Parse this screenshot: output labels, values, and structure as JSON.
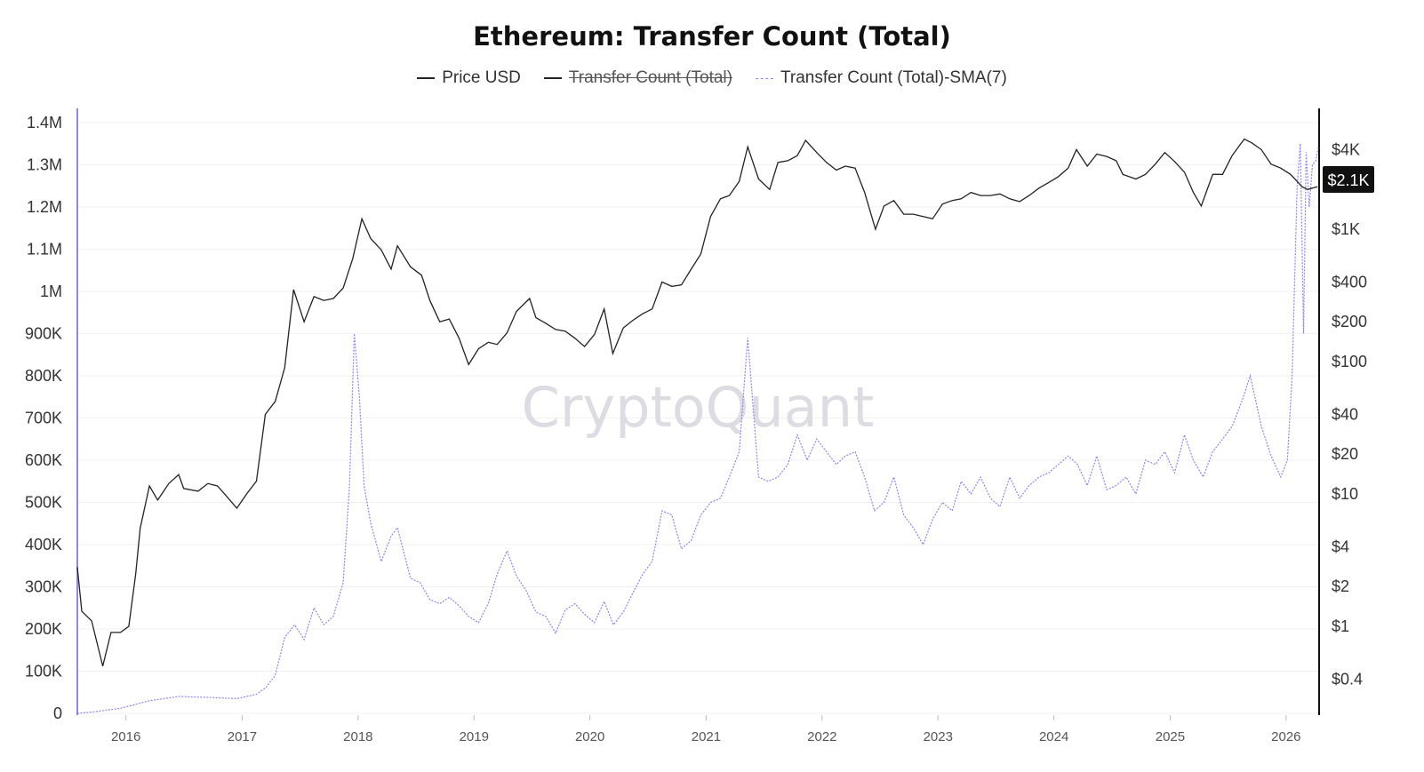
{
  "title": "Ethereum: Transfer Count (Total)",
  "legend": [
    {
      "label": "Price USD",
      "style": "solid",
      "color": "#222222",
      "hidden": false
    },
    {
      "label": "Transfer Count (Total)",
      "style": "solid",
      "color": "#222222",
      "hidden": true
    },
    {
      "label": "Transfer Count (Total)-SMA(7)",
      "style": "dotted",
      "color": "#8f86e8",
      "hidden": false
    }
  ],
  "watermark": "CryptoQuant",
  "current_price_label": "$2.1K",
  "chart_data": {
    "type": "line",
    "x_axis": {
      "type": "date",
      "ticks": [
        "2016",
        "2017",
        "2018",
        "2019",
        "2020",
        "2021",
        "2022",
        "2023",
        "2024",
        "2025",
        "2026"
      ],
      "range": [
        "2015-08-01",
        "2026-04-15"
      ]
    },
    "y_left": {
      "label": "",
      "ticks": [
        "0",
        "100K",
        "200K",
        "300K",
        "400K",
        "500K",
        "600K",
        "700K",
        "800K",
        "900K",
        "1M",
        "1.1M",
        "1.2M",
        "1.3M",
        "1.4M"
      ],
      "tick_values": [
        0,
        100000,
        200000,
        300000,
        400000,
        500000,
        600000,
        700000,
        800000,
        900000,
        1000000,
        1100000,
        1200000,
        1300000,
        1400000
      ],
      "range": [
        0,
        1400000
      ],
      "series": "Transfer Count (Total)-SMA(7)"
    },
    "y_right": {
      "label": "",
      "scale": "log",
      "ticks": [
        "$4K",
        "$1K",
        "$400",
        "$200",
        "$100",
        "$40",
        "$20",
        "$10",
        "$4",
        "$2",
        "$1",
        "$0.4"
      ],
      "tick_values": [
        4000,
        1000,
        400,
        200,
        100,
        40,
        20,
        10,
        4,
        2,
        1,
        0.4
      ],
      "range": [
        0.22,
        6400
      ],
      "series": "Price USD"
    },
    "grid": true,
    "series": [
      {
        "name": "Price USD",
        "axis": "right",
        "color": "#222222",
        "x": [
          "2015-08-01",
          "2015-08-15",
          "2015-09-15",
          "2015-10-20",
          "2015-11-15",
          "2015-12-15",
          "2016-01-10",
          "2016-02-01",
          "2016-02-15",
          "2016-03-15",
          "2016-04-10",
          "2016-05-15",
          "2016-06-15",
          "2016-07-01",
          "2016-08-15",
          "2016-09-15",
          "2016-10-15",
          "2016-11-15",
          "2016-12-15",
          "2017-01-15",
          "2017-02-15",
          "2017-03-15",
          "2017-04-15",
          "2017-05-15",
          "2017-06-12",
          "2017-07-15",
          "2017-08-15",
          "2017-09-15",
          "2017-10-15",
          "2017-11-15",
          "2017-12-15",
          "2018-01-13",
          "2018-02-10",
          "2018-03-15",
          "2018-04-15",
          "2018-05-05",
          "2018-06-15",
          "2018-07-20",
          "2018-08-15",
          "2018-09-15",
          "2018-10-15",
          "2018-11-15",
          "2018-12-15",
          "2019-01-15",
          "2019-02-15",
          "2019-03-15",
          "2019-04-15",
          "2019-05-15",
          "2019-06-25",
          "2019-07-15",
          "2019-08-15",
          "2019-09-15",
          "2019-10-15",
          "2019-11-15",
          "2019-12-15",
          "2020-01-15",
          "2020-02-15",
          "2020-03-13",
          "2020-04-15",
          "2020-05-15",
          "2020-06-15",
          "2020-07-15",
          "2020-08-15",
          "2020-09-15",
          "2020-10-15",
          "2020-11-15",
          "2020-12-15",
          "2021-01-15",
          "2021-02-15",
          "2021-03-15",
          "2021-04-15",
          "2021-05-12",
          "2021-06-15",
          "2021-07-20",
          "2021-08-15",
          "2021-09-15",
          "2021-10-15",
          "2021-11-10",
          "2021-12-15",
          "2022-01-15",
          "2022-02-15",
          "2022-03-15",
          "2022-04-15",
          "2022-05-15",
          "2022-06-18",
          "2022-07-15",
          "2022-08-15",
          "2022-09-15",
          "2022-10-15",
          "2022-11-15",
          "2022-12-15",
          "2023-01-15",
          "2023-02-15",
          "2023-03-15",
          "2023-04-15",
          "2023-05-15",
          "2023-06-15",
          "2023-07-15",
          "2023-08-15",
          "2023-09-15",
          "2023-10-15",
          "2023-11-15",
          "2023-12-15",
          "2024-01-15",
          "2024-02-15",
          "2024-03-12",
          "2024-04-15",
          "2024-05-15",
          "2024-06-15",
          "2024-07-15",
          "2024-08-05",
          "2024-09-15",
          "2024-10-15",
          "2024-11-15",
          "2024-12-15",
          "2025-01-15",
          "2025-02-15",
          "2025-03-15",
          "2025-04-09",
          "2025-05-15",
          "2025-06-15",
          "2025-07-15",
          "2025-08-22",
          "2025-09-15",
          "2025-10-15",
          "2025-11-15",
          "2025-12-15",
          "2026-01-15",
          "2026-02-05",
          "2026-02-20",
          "2026-03-10",
          "2026-03-25",
          "2026-04-10"
        ],
        "y": [
          2.8,
          1.3,
          1.1,
          0.5,
          0.9,
          0.9,
          1.0,
          2.5,
          5.5,
          11.5,
          9,
          12,
          14,
          11,
          10.5,
          12,
          11.5,
          9.5,
          7.8,
          10,
          12.5,
          40,
          50,
          90,
          350,
          200,
          310,
          290,
          300,
          360,
          600,
          1200,
          850,
          700,
          500,
          750,
          520,
          450,
          290,
          200,
          210,
          150,
          95,
          125,
          140,
          135,
          165,
          240,
          300,
          215,
          195,
          175,
          170,
          150,
          130,
          160,
          250,
          115,
          180,
          205,
          230,
          250,
          400,
          370,
          380,
          500,
          650,
          1250,
          1700,
          1800,
          2300,
          4200,
          2400,
          2000,
          3200,
          3300,
          3600,
          4700,
          3800,
          3200,
          2800,
          3000,
          2900,
          1900,
          1000,
          1500,
          1650,
          1300,
          1300,
          1250,
          1200,
          1550,
          1650,
          1700,
          1900,
          1800,
          1800,
          1850,
          1700,
          1620,
          1800,
          2050,
          2250,
          2500,
          2900,
          4000,
          3000,
          3700,
          3550,
          3300,
          2600,
          2400,
          2600,
          3100,
          3800,
          3250,
          2700,
          1900,
          1500,
          2600,
          2600,
          3600,
          4800,
          4500,
          4000,
          3100,
          2900,
          2600,
          2300,
          2100,
          2000,
          2050,
          2100
        ]
      },
      {
        "name": "Transfer Count (Total)-SMA(7)",
        "axis": "left",
        "color": "#8f86e8",
        "x": [
          "2015-08-01",
          "2015-09-15",
          "2015-12-15",
          "2016-03-15",
          "2016-06-15",
          "2016-09-15",
          "2016-12-15",
          "2017-02-15",
          "2017-03-15",
          "2017-04-15",
          "2017-05-15",
          "2017-06-15",
          "2017-07-15",
          "2017-08-15",
          "2017-09-15",
          "2017-10-15",
          "2017-11-15",
          "2017-12-05",
          "2017-12-20",
          "2018-01-05",
          "2018-01-20",
          "2018-02-10",
          "2018-03-15",
          "2018-04-15",
          "2018-05-05",
          "2018-06-15",
          "2018-07-15",
          "2018-08-15",
          "2018-09-15",
          "2018-10-15",
          "2018-11-15",
          "2018-12-15",
          "2019-01-15",
          "2019-02-15",
          "2019-03-15",
          "2019-04-15",
          "2019-05-15",
          "2019-06-15",
          "2019-07-15",
          "2019-08-15",
          "2019-09-15",
          "2019-10-15",
          "2019-11-15",
          "2019-12-15",
          "2020-01-15",
          "2020-02-15",
          "2020-03-15",
          "2020-04-15",
          "2020-05-15",
          "2020-06-15",
          "2020-07-15",
          "2020-08-15",
          "2020-09-15",
          "2020-10-15",
          "2020-11-15",
          "2020-12-15",
          "2021-01-15",
          "2021-02-15",
          "2021-03-15",
          "2021-04-15",
          "2021-05-12",
          "2021-06-15",
          "2021-07-15",
          "2021-08-15",
          "2021-09-15",
          "2021-10-15",
          "2021-11-15",
          "2021-12-15",
          "2022-01-15",
          "2022-02-15",
          "2022-03-15",
          "2022-04-15",
          "2022-05-15",
          "2022-06-15",
          "2022-07-15",
          "2022-08-15",
          "2022-09-15",
          "2022-10-15",
          "2022-11-15",
          "2022-12-15",
          "2023-01-15",
          "2023-02-15",
          "2023-03-15",
          "2023-04-15",
          "2023-05-15",
          "2023-06-15",
          "2023-07-15",
          "2023-08-15",
          "2023-09-15",
          "2023-10-15",
          "2023-11-15",
          "2023-12-15",
          "2024-01-15",
          "2024-02-15",
          "2024-03-15",
          "2024-04-15",
          "2024-05-15",
          "2024-06-15",
          "2024-07-15",
          "2024-08-15",
          "2024-09-15",
          "2024-10-15",
          "2024-11-15",
          "2024-12-15",
          "2025-01-15",
          "2025-02-15",
          "2025-03-15",
          "2025-04-15",
          "2025-05-15",
          "2025-06-15",
          "2025-07-15",
          "2025-08-15",
          "2025-09-10",
          "2025-10-15",
          "2025-11-15",
          "2025-12-15",
          "2026-01-05",
          "2026-01-20",
          "2026-02-05",
          "2026-02-15",
          "2026-02-25",
          "2026-03-05",
          "2026-03-15",
          "2026-03-25",
          "2026-04-05",
          "2026-04-12"
        ],
        "y": [
          0,
          3000,
          12000,
          30000,
          40000,
          38000,
          35000,
          45000,
          60000,
          90000,
          180000,
          210000,
          175000,
          250000,
          210000,
          230000,
          310000,
          540000,
          900000,
          750000,
          540000,
          450000,
          360000,
          420000,
          440000,
          320000,
          310000,
          270000,
          260000,
          275000,
          255000,
          230000,
          215000,
          260000,
          330000,
          385000,
          325000,
          290000,
          240000,
          230000,
          190000,
          245000,
          260000,
          235000,
          215000,
          265000,
          210000,
          240000,
          285000,
          330000,
          360000,
          480000,
          470000,
          390000,
          410000,
          470000,
          500000,
          510000,
          560000,
          620000,
          890000,
          560000,
          550000,
          560000,
          590000,
          660000,
          600000,
          650000,
          620000,
          590000,
          610000,
          620000,
          560000,
          480000,
          500000,
          560000,
          470000,
          440000,
          400000,
          460000,
          500000,
          480000,
          550000,
          520000,
          560000,
          510000,
          490000,
          560000,
          510000,
          540000,
          560000,
          570000,
          590000,
          610000,
          590000,
          540000,
          610000,
          530000,
          540000,
          560000,
          520000,
          600000,
          590000,
          620000,
          570000,
          660000,
          600000,
          560000,
          620000,
          650000,
          680000,
          740000,
          800000,
          680000,
          610000,
          560000,
          600000,
          800000,
          1250000,
          1350000,
          900000,
          1330000,
          1200000,
          1300000,
          1310000,
          1340000
        ]
      }
    ]
  }
}
